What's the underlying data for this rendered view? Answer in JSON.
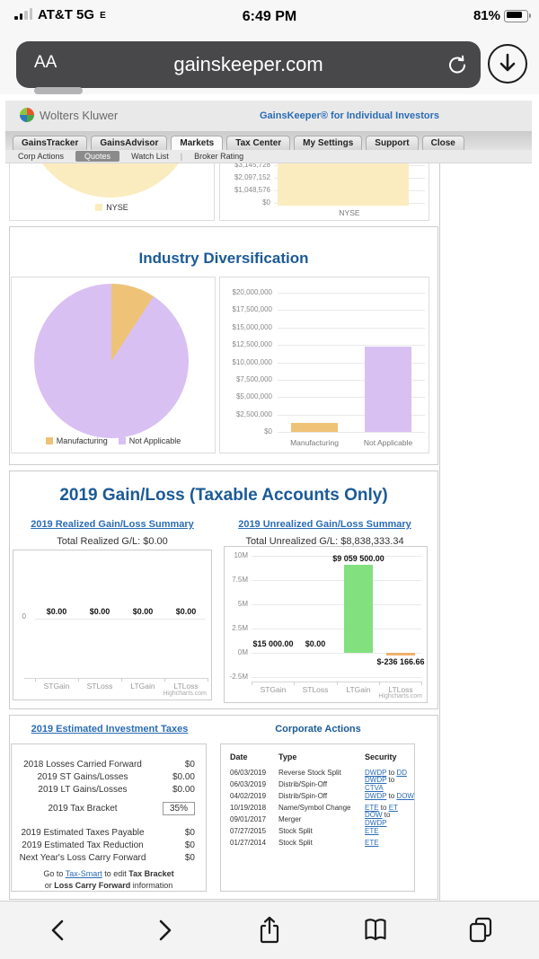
{
  "status_bar": {
    "carrier": "AT&T 5G",
    "carrier_band": "E",
    "time": "6:49 PM",
    "battery_pct": "81%"
  },
  "browser": {
    "reader_label": "AA",
    "url": "gainskeeper.com"
  },
  "site": {
    "logo": "Wolters Kluwer",
    "tagline": "GainsKeeper® for Individual Investors"
  },
  "nav": {
    "tabs": [
      "GainsTracker",
      "GainsAdvisor",
      "Markets",
      "Tax Center",
      "My Settings",
      "Support",
      "Close"
    ],
    "active_tab": "Markets",
    "subnav": [
      "Corp Actions",
      "Quotes",
      "Watch List",
      "Broker Rating"
    ],
    "active_subnav": "Quotes"
  },
  "colors": {
    "cream": "#fbecc0",
    "orange": "#efc377",
    "purple": "#d9c0f2",
    "green": "#82e07e",
    "loss_orange": "#eeb26b",
    "heading_blue": "#1b5a97",
    "link_blue": "#2a6cb5"
  },
  "sections": {
    "industry_title": "Industry Diversification",
    "gainloss_title": "2019 Gain/Loss (Taxable Accounts Only)",
    "realized_link": "2019 Realized Gain/Loss Summary",
    "realized_total": "Total Realized G/L: $0.00",
    "unrealized_link": "2019 Unrealized Gain/Loss Summary",
    "unrealized_total": "Total Unrealized G/L: $8,838,333.34",
    "taxes_title": "2019 Estimated Investment Taxes",
    "corp_title": "Corporate Actions"
  },
  "chart_data": [
    {
      "id": "exchange_pie",
      "type": "pie",
      "slices": [
        {
          "label": "NYSE",
          "angle_deg": 360,
          "color_key": "cream"
        }
      ],
      "legend": [
        "NYSE"
      ]
    },
    {
      "id": "exchange_bar",
      "type": "bar",
      "yticks": [
        "$3,145,728",
        "$2,097,152",
        "$1,048,576",
        "$0"
      ],
      "categories": [
        "NYSE"
      ],
      "values": [
        null
      ],
      "bar_color_keys": [
        "cream"
      ]
    },
    {
      "id": "industry_pie",
      "type": "pie",
      "slices": [
        {
          "label": "Manufacturing",
          "angle_deg": 33,
          "color_key": "orange"
        },
        {
          "label": "Not Applicable",
          "angle_deg": 327,
          "color_key": "purple"
        }
      ],
      "legend": [
        "Manufacturing",
        "Not Applicable"
      ]
    },
    {
      "id": "industry_bar",
      "type": "bar",
      "yticks": [
        "$20,000,000",
        "$17,500,000",
        "$15,000,000",
        "$12,500,000",
        "$10,000,000",
        "$7,500,000",
        "$5,000,000",
        "$2,500,000",
        "$0"
      ],
      "ymax": 20000000,
      "ymin": 0,
      "categories": [
        "Manufacturing",
        "Not Applicable"
      ],
      "values": [
        1250000,
        12250000
      ],
      "bar_color_keys": [
        "orange",
        "purple"
      ]
    },
    {
      "id": "realized_bar",
      "type": "bar",
      "yticks": [
        "0"
      ],
      "categories": [
        "STGain",
        "STLoss",
        "LTGain",
        "LTLoss"
      ],
      "values": [
        0,
        0,
        0,
        0
      ],
      "value_labels": [
        "$0.00",
        "$0.00",
        "$0.00",
        "$0.00"
      ],
      "credit": "Highcharts.com"
    },
    {
      "id": "unrealized_bar",
      "type": "bar",
      "yticks": [
        "10M",
        "7.5M",
        "5M",
        "2.5M",
        "0M",
        "-2.5M"
      ],
      "ymax": 10000000,
      "ymin": -2500000,
      "categories": [
        "STGain",
        "STLoss",
        "LTGain",
        "LTLoss"
      ],
      "values": [
        15000,
        0,
        9059500,
        -236166.66
      ],
      "value_labels": [
        "$15 000.00",
        "$0.00",
        "$9 059 500.00",
        "$-236 166.66"
      ],
      "bar_color_keys": [
        "green",
        "green",
        "green",
        "loss_orange"
      ],
      "credit": "Highcharts.com"
    }
  ],
  "taxes": {
    "rows_top": [
      [
        "2018 Losses Carried Forward",
        "$0"
      ],
      [
        "2019 ST Gains/Losses",
        "$0.00"
      ],
      [
        "2019 LT Gains/Losses",
        "$0.00"
      ]
    ],
    "bracket_label": "2019 Tax Bracket",
    "bracket_value": "35%",
    "rows_bottom": [
      [
        "2019 Estimated Taxes Payable",
        "$0"
      ],
      [
        "2019 Estimated Tax Reduction",
        "$0"
      ],
      [
        "Next Year's Loss Carry Forward",
        "$0"
      ]
    ],
    "note_line1": [
      [
        "text",
        "Go to "
      ],
      [
        "link",
        "Tax-Smart"
      ],
      [
        "text",
        " to edit "
      ],
      [
        "bold",
        "Tax Bracket"
      ]
    ],
    "note_line2": [
      [
        "text",
        "or "
      ],
      [
        "bold",
        "Loss Carry Forward"
      ],
      [
        "text",
        " information"
      ]
    ]
  },
  "corp_actions": {
    "headers": [
      "Date",
      "Type",
      "Security"
    ],
    "rows": [
      {
        "date": "06/03/2019",
        "type": "Reverse Stock Split",
        "security": [
          [
            "link",
            "DWDP"
          ],
          [
            "text",
            " to "
          ],
          [
            "link",
            "DD"
          ]
        ]
      },
      {
        "date": "06/03/2019",
        "type": "Distrib/Spin-Off",
        "security": [
          [
            "link",
            "DWDP"
          ],
          [
            "text",
            " to "
          ],
          [
            "link",
            "CTVA"
          ]
        ]
      },
      {
        "date": "04/02/2019",
        "type": "Distrib/Spin-Off",
        "security": [
          [
            "link",
            "DWDP"
          ],
          [
            "text",
            " to "
          ],
          [
            "link",
            "DOW"
          ]
        ]
      },
      {
        "date": "10/19/2018",
        "type": "Name/Symbol Change",
        "security": [
          [
            "link",
            "ETE"
          ],
          [
            "text",
            " to "
          ],
          [
            "link",
            "ET"
          ]
        ]
      },
      {
        "date": "09/01/2017",
        "type": "Merger",
        "security": [
          [
            "link",
            "DOW"
          ],
          [
            "text",
            " to "
          ],
          [
            "link",
            "DWDP"
          ]
        ]
      },
      {
        "date": "07/27/2015",
        "type": "Stock Split",
        "security": [
          [
            "link",
            "ETE"
          ]
        ]
      },
      {
        "date": "01/27/2014",
        "type": "Stock Split",
        "security": [
          [
            "link",
            "ETE"
          ]
        ]
      }
    ]
  }
}
